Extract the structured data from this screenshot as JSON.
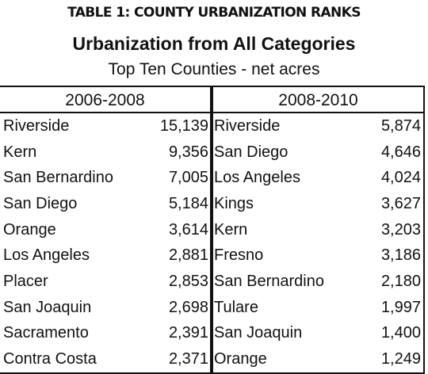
{
  "table_label": "TABLE 1: COUNTY URBANIZATION RANKS",
  "title": "Urbanization from All Categories",
  "subtitle": "Top Ten Counties - net acres",
  "periods": [
    {
      "heading": "2006-2008",
      "rows": [
        {
          "county": "Riverside",
          "acres": "15,139"
        },
        {
          "county": "Kern",
          "acres": "9,356"
        },
        {
          "county": "San Bernardino",
          "acres": "7,005"
        },
        {
          "county": "San Diego",
          "acres": "5,184"
        },
        {
          "county": "Orange",
          "acres": "3,614"
        },
        {
          "county": "Los Angeles",
          "acres": "2,881"
        },
        {
          "county": "Placer",
          "acres": "2,853"
        },
        {
          "county": "San Joaquin",
          "acres": "2,698"
        },
        {
          "county": "Sacramento",
          "acres": "2,391"
        },
        {
          "county": "Contra Costa",
          "acres": "2,371"
        }
      ]
    },
    {
      "heading": "2008-2010",
      "rows": [
        {
          "county": "Riverside",
          "acres": "5,874"
        },
        {
          "county": "San Diego",
          "acres": "4,646"
        },
        {
          "county": "Los Angeles",
          "acres": "4,024"
        },
        {
          "county": "Kings",
          "acres": "3,627"
        },
        {
          "county": "Kern",
          "acres": "3,203"
        },
        {
          "county": "Fresno",
          "acres": "3,186"
        },
        {
          "county": "San Bernardino",
          "acres": "2,180"
        },
        {
          "county": "Tulare",
          "acres": "1,997"
        },
        {
          "county": "San Joaquin",
          "acres": "1,400"
        },
        {
          "county": "Orange",
          "acres": "1,249"
        }
      ]
    }
  ]
}
